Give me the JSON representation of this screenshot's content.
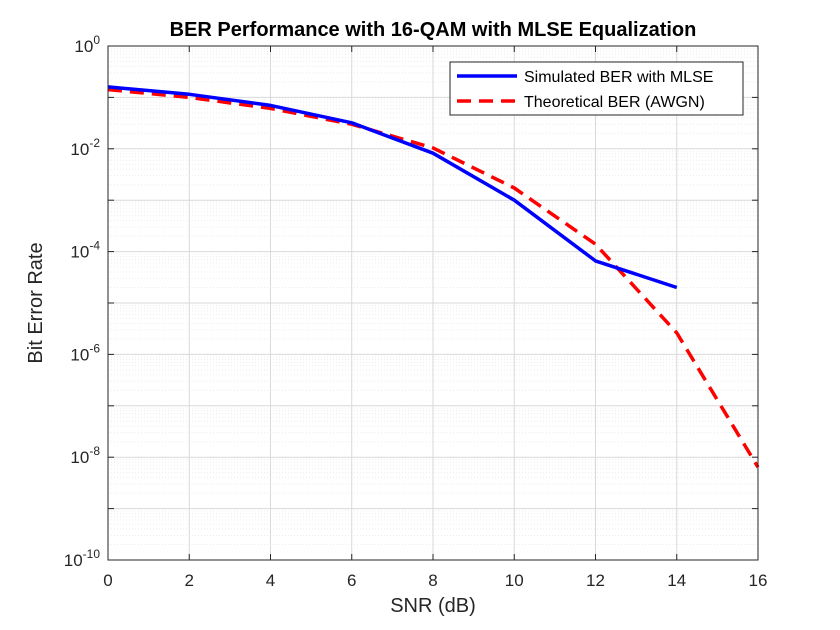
{
  "chart_data": {
    "type": "line",
    "title": "BER Performance with 16-QAM with MLSE Equalization",
    "xlabel": "SNR (dB)",
    "ylabel": "Bit Error Rate",
    "x_ticks": [
      "0",
      "2",
      "4",
      "6",
      "8",
      "10",
      "12",
      "14",
      "16"
    ],
    "y_ticks": [
      {
        "base": "10",
        "exp": "0"
      },
      {
        "base": "10",
        "exp": "-2"
      },
      {
        "base": "10",
        "exp": "-4"
      },
      {
        "base": "10",
        "exp": "-6"
      },
      {
        "base": "10",
        "exp": "-8"
      },
      {
        "base": "10",
        "exp": "-10"
      }
    ],
    "xlim": [
      0,
      16
    ],
    "ylim": [
      1e-10,
      1
    ],
    "y_scale": "log",
    "grid": true,
    "minor_grid": true,
    "legend_position": "top-right",
    "series": [
      {
        "name": "Simulated BER with MLSE",
        "color": "#0000ff",
        "style": "solid",
        "x": [
          0,
          2,
          4,
          6,
          8,
          10,
          12,
          14
        ],
        "y": [
          0.16,
          0.115,
          0.07,
          0.032,
          0.0082,
          0.001,
          6.6e-05,
          2e-05
        ]
      },
      {
        "name": "Theoretical BER (AWGN)",
        "color": "#ff0000",
        "style": "dashed",
        "x": [
          0,
          2,
          4,
          6,
          8,
          10,
          12,
          14,
          16
        ],
        "y": [
          0.142,
          0.1,
          0.061,
          0.03,
          0.0104,
          0.00173,
          0.000139,
          2.62e-06,
          6.4e-09
        ]
      }
    ]
  }
}
